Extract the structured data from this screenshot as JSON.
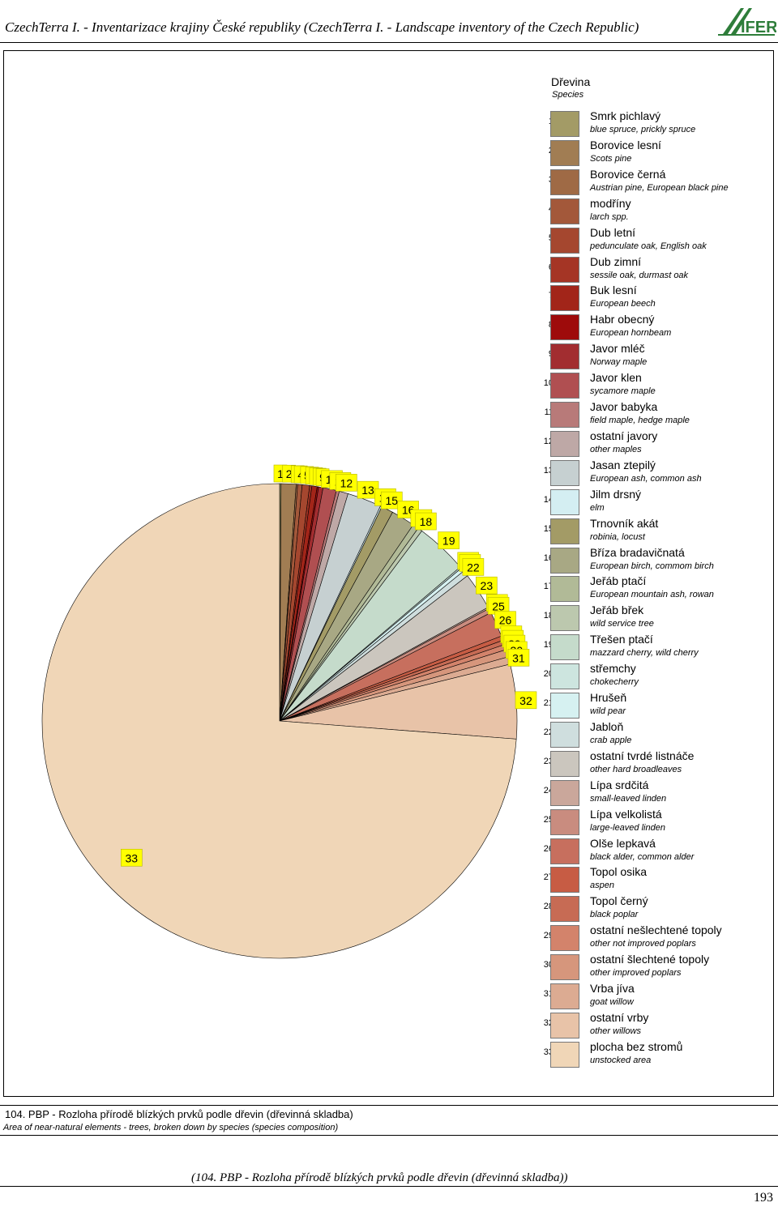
{
  "header": {
    "title": "CzechTerra I. - Inventarizace krajiny České republiky (CzechTerra I. - Landscape inventory of the Czech Republic)",
    "logo_text": "IFER"
  },
  "legend": {
    "title": "Dřevina",
    "subtitle": "Species"
  },
  "chart_data": {
    "type": "pie",
    "title": "",
    "legend_placement": "right",
    "categories": [
      {
        "n": "1",
        "cz": "Smrk pichlavý",
        "en": "blue spruce, prickly spruce",
        "color": "#a39b66",
        "value": 0.1
      },
      {
        "n": "2",
        "cz": "Borovice lesní",
        "en": "Scots pine",
        "color": "#a17d53",
        "value": 1.0
      },
      {
        "n": "3",
        "cz": "Borovice černá",
        "en": "Austrian pine, European black pine",
        "color": "#9f6a45",
        "value": 0.1
      },
      {
        "n": "4",
        "cz": "modříny",
        "en": "larch spp.",
        "color": "#a3583a",
        "value": 0.3
      },
      {
        "n": "5",
        "cz": "Dub letní",
        "en": "pedunculate oak, English oak",
        "color": "#a5472f",
        "value": 0.5
      },
      {
        "n": "6",
        "cz": "Dub zimní",
        "en": "sessile oak, durmast oak",
        "color": "#a53525",
        "value": 0.15
      },
      {
        "n": "7",
        "cz": "Buk lesní",
        "en": "European beech",
        "color": "#a22519",
        "value": 0.35
      },
      {
        "n": "8",
        "cz": "Habr obecný",
        "en": "European hornbeam",
        "color": "#9e0b0b",
        "value": 0.1
      },
      {
        "n": "9",
        "cz": "Javor mléč",
        "en": "Norway maple",
        "color": "#a22d30",
        "value": 0.3
      },
      {
        "n": "10",
        "cz": "Javor klen",
        "en": "sycamore maple",
        "color": "#b04f51",
        "value": 0.9
      },
      {
        "n": "11",
        "cz": "Javor babyka",
        "en": "field maple, hedge maple",
        "color": "#b87a79",
        "value": 0.2
      },
      {
        "n": "12",
        "cz": "ostatní javory",
        "en": "other maples",
        "color": "#bea8a6",
        "value": 0.6
      },
      {
        "n": "13",
        "cz": "Jasan ztepilý",
        "en": "European ash, common ash",
        "color": "#c6d0d1",
        "value": 2.3
      },
      {
        "n": "14",
        "cz": "Jilm drsný",
        "en": "elm",
        "color": "#d4eef2",
        "value": 0.1
      },
      {
        "n": "15",
        "cz": "Trnovník akát",
        "en": "robinia, locust",
        "color": "#a39b66",
        "value": 0.8
      },
      {
        "n": "16",
        "cz": "Bříza bradavičnatá",
        "en": "European birch, commom birch",
        "color": "#a8a884",
        "value": 1.6
      },
      {
        "n": "17",
        "cz": "Jeřáb ptačí",
        "en": "European mountain ash, rowan",
        "color": "#b1ba97",
        "value": 0.4
      },
      {
        "n": "18",
        "cz": "Jeřáb břek",
        "en": "wild service tree",
        "color": "#bcc8ae",
        "value": 0.3
      },
      {
        "n": "19",
        "cz": "Třešen ptačí",
        "en": "mazzard cherry, wild cherry",
        "color": "#c5dbcb",
        "value": 3.5
      },
      {
        "n": "20",
        "cz": "střemchy",
        "en": "chokecherry",
        "color": "#cde5df",
        "value": 0.1
      },
      {
        "n": "21",
        "cz": "Hrušeň",
        "en": "wild pear",
        "color": "#d6f1f1",
        "value": 0.25
      },
      {
        "n": "22",
        "cz": "Jabloň",
        "en": "crab apple",
        "color": "#cfdede",
        "value": 0.4
      },
      {
        "n": "23",
        "cz": "ostatní tvrdé listnáče",
        "en": "other hard broadleaves",
        "color": "#cbc6be",
        "value": 2.5
      },
      {
        "n": "24",
        "cz": "Lípa srdčitá",
        "en": "small-leaved linden",
        "color": "#caa79b",
        "value": 0.1
      },
      {
        "n": "25",
        "cz": "Lípa velkolistá",
        "en": "large-leaved linden",
        "color": "#c98c7f",
        "value": 0.3
      },
      {
        "n": "26",
        "cz": "Olše lepkavá",
        "en": "black alder, common alder",
        "color": "#c76f5e",
        "value": 1.7
      },
      {
        "n": "27",
        "cz": "Topol osika",
        "en": "aspen",
        "color": "#c75c44",
        "value": 0.3
      },
      {
        "n": "28",
        "cz": "Topol černý",
        "en": "black poplar",
        "color": "#c76b54",
        "value": 0.3
      },
      {
        "n": "29",
        "cz": "ostatní nešlechtené topoly",
        "en": "other not improved poplars",
        "color": "#d3836b",
        "value": 0.35
      },
      {
        "n": "30",
        "cz": "ostatní šlechtené topoly",
        "en": "other improved poplars",
        "color": "#d6967c",
        "value": 0.5
      },
      {
        "n": "31",
        "cz": "Vrba jíva",
        "en": "goat willow",
        "color": "#dcab92",
        "value": 0.5
      },
      {
        "n": "32",
        "cz": "ostatní vrby",
        "en": "other willows",
        "color": "#e8c3a8",
        "value": 5.0
      },
      {
        "n": "33",
        "cz": "plocha bez stromů",
        "en": "unstocked area",
        "color": "#f0d6b7",
        "value": 72.9
      }
    ]
  },
  "caption": {
    "cz": "104. PBP - Rozloha přírodě blízkých prvků podle dřevin (dřevinná skladba)",
    "en": "Area of near-natural elements - trees, broken down by species (species composition)"
  },
  "footer": {
    "text": "(104. PBP - Rozloha přírodě blízkých prvků podle dřevin (dřevinná skladba))",
    "page_number": "193"
  }
}
